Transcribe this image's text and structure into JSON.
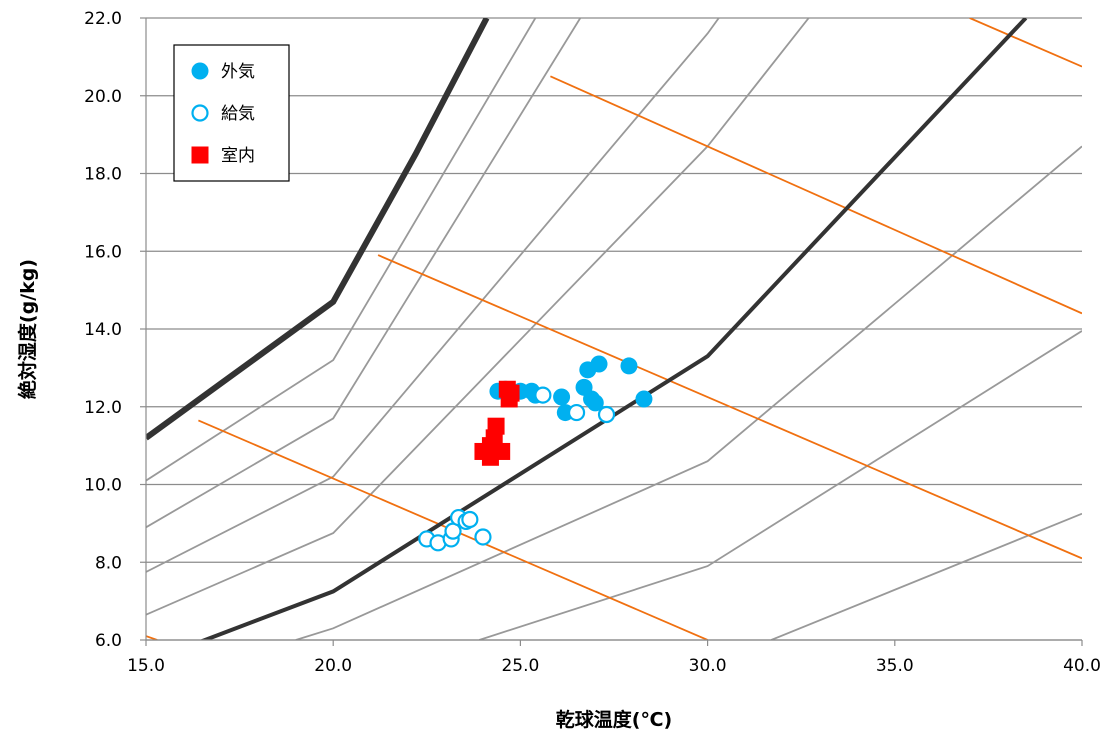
{
  "chart_data": {
    "type": "scatter",
    "xlabel": "乾球温度(℃)",
    "ylabel": "絶対湿度(g/kg)",
    "xlim": [
      15.0,
      40.0
    ],
    "ylim": [
      6.0,
      22.0
    ],
    "x_ticks": [
      "15.0",
      "20.0",
      "25.0",
      "30.0",
      "35.0",
      "40.0"
    ],
    "y_ticks": [
      "6.0",
      "8.0",
      "10.0",
      "12.0",
      "14.0",
      "16.0",
      "18.0",
      "20.0",
      "22.0"
    ],
    "grid": "horizontal",
    "legend_position": "top-left",
    "series": [
      {
        "name": "外気",
        "marker": "filled-circle",
        "color": "#00b0f0",
        "points": [
          [
            24.4,
            12.4
          ],
          [
            24.6,
            12.45
          ],
          [
            25.0,
            12.4
          ],
          [
            25.3,
            12.4
          ],
          [
            25.4,
            12.3
          ],
          [
            26.1,
            12.25
          ],
          [
            26.2,
            11.85
          ],
          [
            26.7,
            12.5
          ],
          [
            26.8,
            12.95
          ],
          [
            26.9,
            12.2
          ],
          [
            27.0,
            12.1
          ],
          [
            27.1,
            13.1
          ],
          [
            27.9,
            13.05
          ],
          [
            28.3,
            12.2
          ]
        ]
      },
      {
        "name": "給気",
        "marker": "hollow-circle",
        "color": "#00b0f0",
        "points": [
          [
            25.6,
            12.3
          ],
          [
            26.5,
            11.85
          ],
          [
            27.3,
            11.8
          ],
          [
            22.5,
            8.6
          ],
          [
            22.8,
            8.5
          ],
          [
            23.15,
            8.6
          ],
          [
            23.2,
            8.8
          ],
          [
            23.35,
            9.15
          ],
          [
            23.55,
            9.05
          ],
          [
            23.65,
            9.1
          ],
          [
            24.0,
            8.65
          ]
        ]
      },
      {
        "name": "室内",
        "marker": "square",
        "color": "#ff0000",
        "points": [
          [
            24.65,
            12.45
          ],
          [
            24.75,
            12.35
          ],
          [
            24.7,
            12.2
          ],
          [
            24.35,
            11.5
          ],
          [
            24.3,
            11.2
          ],
          [
            24.2,
            11.0
          ],
          [
            24.0,
            10.85
          ],
          [
            24.2,
            10.7
          ],
          [
            24.5,
            10.85
          ]
        ]
      }
    ],
    "saturation_curves": [
      {
        "name": "rh100",
        "color": "#333333",
        "width": 6,
        "points": [
          [
            15.0,
            11.2
          ],
          [
            20.0,
            14.7
          ],
          [
            22.2,
            18.5
          ],
          [
            24.1,
            22.0
          ]
        ]
      },
      {
        "name": "rh50",
        "color": "#333333",
        "width": 4,
        "points": [
          [
            16.3,
            5.9
          ],
          [
            20.0,
            7.25
          ],
          [
            30.0,
            13.3
          ],
          [
            38.5,
            22.0
          ]
        ]
      }
    ],
    "rh_curves": [
      {
        "name": "rh90",
        "color": "#999999",
        "points": [
          [
            15.0,
            10.1
          ],
          [
            20.0,
            13.2
          ],
          [
            25.4,
            22.0
          ]
        ]
      },
      {
        "name": "rh80",
        "color": "#999999",
        "points": [
          [
            15.0,
            8.9
          ],
          [
            20.0,
            11.7
          ],
          [
            26.6,
            22.0
          ]
        ]
      },
      {
        "name": "rh70",
        "color": "#999999",
        "points": [
          [
            15.0,
            7.75
          ],
          [
            20.0,
            10.2
          ],
          [
            30.0,
            21.6
          ],
          [
            30.3,
            22.0
          ]
        ]
      },
      {
        "name": "rh60",
        "color": "#999999",
        "points": [
          [
            15.0,
            6.65
          ],
          [
            20.0,
            8.75
          ],
          [
            30.0,
            18.7
          ],
          [
            32.7,
            22.0
          ]
        ]
      },
      {
        "name": "rh40",
        "color": "#999999",
        "points": [
          [
            19.0,
            6.0
          ],
          [
            20.0,
            6.3
          ],
          [
            30.0,
            10.6
          ],
          [
            40.0,
            18.7
          ]
        ]
      },
      {
        "name": "rh30",
        "color": "#999999",
        "points": [
          [
            23.9,
            6.0
          ],
          [
            30.0,
            7.9
          ],
          [
            40.0,
            13.95
          ]
        ]
      },
      {
        "name": "rh20",
        "color": "#999999",
        "points": [
          [
            31.7,
            6.0
          ],
          [
            40.0,
            9.25
          ]
        ]
      }
    ],
    "enthalpy_lines": [
      {
        "name": "h1",
        "color": "#f07010",
        "points": [
          [
            15.0,
            6.1
          ],
          [
            15.3,
            6.0
          ]
        ]
      },
      {
        "name": "h2",
        "color": "#f07010",
        "points": [
          [
            16.4,
            11.65
          ],
          [
            30.0,
            6.0
          ]
        ]
      },
      {
        "name": "h3",
        "color": "#f07010",
        "points": [
          [
            21.2,
            15.9
          ],
          [
            40.0,
            8.1
          ]
        ]
      },
      {
        "name": "h4",
        "color": "#f07010",
        "points": [
          [
            25.8,
            20.5
          ],
          [
            40.0,
            14.4
          ]
        ]
      },
      {
        "name": "h5",
        "color": "#f07010",
        "points": [
          [
            37.0,
            22.0
          ],
          [
            40.0,
            20.75
          ]
        ]
      }
    ]
  }
}
